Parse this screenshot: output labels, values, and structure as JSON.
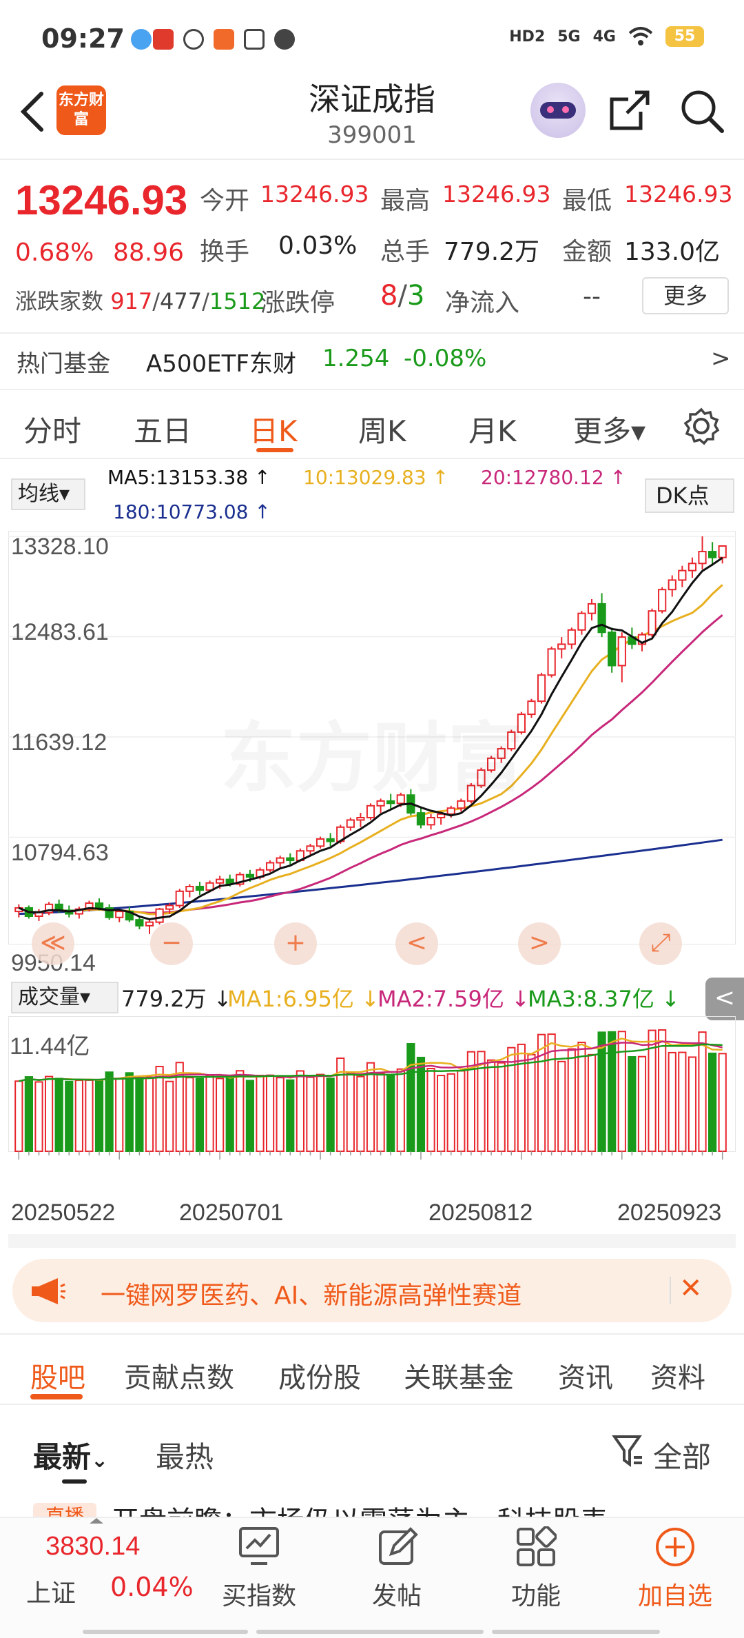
{
  "status_bar": {
    "time": "09:27",
    "network_labels": [
      "HD2",
      "5G",
      "4G"
    ],
    "battery": "55"
  },
  "header": {
    "logo_text": "东方财富",
    "title": "深证成指",
    "code": "399001"
  },
  "quote": {
    "price": "13246.93",
    "change_pct": "0.68%",
    "change": "88.96",
    "open_label": "今开",
    "open": "13246.93",
    "high_label": "最高",
    "high": "13246.93",
    "low_label": "最低",
    "low": "13246.93",
    "turnover_label": "换手",
    "turnover": "0.03%",
    "volume_label": "总手",
    "volume": "779.2万",
    "amount_label": "金额",
    "amount": "133.0亿",
    "breadth_label": "涨跌家数",
    "breadth_up": "917",
    "breadth_flat": "477",
    "breadth_down": "1512",
    "sep": "/",
    "limit_label": "涨跌停",
    "limit_up": "8",
    "limit_down": "3",
    "netflow_label": "净流入",
    "netflow": "--",
    "more_label": "更多"
  },
  "hot_fund": {
    "label": "热门基金",
    "name": "A500ETF东财",
    "price": "1.254",
    "change": "-0.08%",
    "arrow": ">"
  },
  "period_tabs": [
    "分时",
    "五日",
    "日K",
    "周K",
    "月K",
    "更多▾"
  ],
  "active_period": "日K",
  "indicators": {
    "ma_button": "均线▾",
    "ma5": "MA5:13153.38 ↑",
    "ma10": "10:13029.83 ↑",
    "ma20": "20:12780.12 ↑",
    "ma180": "180:10773.08 ↑",
    "dk_button": "DK点"
  },
  "price_axis": [
    "13328.10",
    "12483.61",
    "11639.12",
    "10794.63",
    "9950.14"
  ],
  "chart_controls": [
    "≪",
    "−",
    "+",
    "<",
    ">",
    "⤢"
  ],
  "volume_panel": {
    "button": "成交量▾",
    "current": "779.2万 ↓",
    "ma1": "MA1:6.95亿 ↓",
    "ma2": "MA2:7.59亿 ↓",
    "ma3": "MA3:8.37亿 ↓",
    "axis_max": "11.44亿",
    "collapse": "<"
  },
  "dates": [
    "20250522",
    "20250701",
    "20250812",
    "20250923"
  ],
  "watermark": "东方财富",
  "colors": {
    "up": "#e8262c",
    "down": "#1a9a1a",
    "accent": "#ef5a1a",
    "ma5": "#111111",
    "ma10": "#e8b020",
    "ma20": "#c8287a",
    "ma180": "#1a2f8f"
  },
  "banner": {
    "text": "一键网罗医药、AI、新能源高弹性赛道",
    "close": "✕"
  },
  "section_tabs": [
    "股吧",
    "贡献点数",
    "成份股",
    "关联基金",
    "资讯",
    "资料"
  ],
  "active_section": "股吧",
  "sort_tabs": [
    "最新",
    "最热"
  ],
  "sort_chevron": "⌄",
  "filter_label": "全部",
  "preview_post": {
    "tag": "直播",
    "text": "开盘前瞻：市场仍以震荡为主，科技股表…"
  },
  "bottom_bar": {
    "index_value": "3830.14",
    "index_name": "上证",
    "index_change": "0.04%",
    "items": [
      "买指数",
      "发帖",
      "功能",
      "加自选"
    ]
  },
  "chart_data": {
    "type": "candlestick",
    "title": "",
    "x_range": [
      "20250522",
      "20250924"
    ],
    "y_range": [
      9950.14,
      13328.1
    ],
    "ohlc": [
      [
        10170,
        10230,
        10120,
        10200
      ],
      [
        10200,
        10220,
        10110,
        10130
      ],
      [
        10130,
        10190,
        10090,
        10160
      ],
      [
        10160,
        10250,
        10140,
        10230
      ],
      [
        10230,
        10270,
        10160,
        10180
      ],
      [
        10180,
        10220,
        10120,
        10150
      ],
      [
        10150,
        10210,
        10110,
        10190
      ],
      [
        10190,
        10260,
        10170,
        10240
      ],
      [
        10240,
        10280,
        10180,
        10200
      ],
      [
        10200,
        10230,
        10100,
        10120
      ],
      [
        10120,
        10180,
        10080,
        10170
      ],
      [
        10170,
        10210,
        10080,
        10100
      ],
      [
        10100,
        10130,
        10020,
        10050
      ],
      [
        10050,
        10110,
        9980,
        10080
      ],
      [
        10080,
        10200,
        10060,
        10190
      ],
      [
        10190,
        10240,
        10150,
        10220
      ],
      [
        10220,
        10360,
        10200,
        10340
      ],
      [
        10340,
        10400,
        10290,
        10380
      ],
      [
        10380,
        10420,
        10310,
        10350
      ],
      [
        10350,
        10430,
        10330,
        10410
      ],
      [
        10410,
        10470,
        10360,
        10440
      ],
      [
        10440,
        10480,
        10380,
        10400
      ],
      [
        10400,
        10500,
        10380,
        10480
      ],
      [
        10480,
        10520,
        10420,
        10460
      ],
      [
        10460,
        10540,
        10440,
        10520
      ],
      [
        10520,
        10600,
        10500,
        10580
      ],
      [
        10580,
        10640,
        10540,
        10620
      ],
      [
        10620,
        10660,
        10560,
        10600
      ],
      [
        10600,
        10700,
        10590,
        10680
      ],
      [
        10680,
        10740,
        10640,
        10720
      ],
      [
        10720,
        10800,
        10700,
        10780
      ],
      [
        10780,
        10830,
        10720,
        10760
      ],
      [
        10760,
        10900,
        10740,
        10880
      ],
      [
        10880,
        10960,
        10850,
        10940
      ],
      [
        10940,
        11000,
        10880,
        10960
      ],
      [
        10960,
        11080,
        10940,
        11060
      ],
      [
        11060,
        11120,
        11000,
        11100
      ],
      [
        11100,
        11160,
        11030,
        11080
      ],
      [
        11080,
        11170,
        11050,
        11150
      ],
      [
        11150,
        11200,
        10980,
        11000
      ],
      [
        11000,
        11040,
        10870,
        10900
      ],
      [
        10900,
        10990,
        10860,
        10960
      ],
      [
        10960,
        11010,
        10900,
        10990
      ],
      [
        10990,
        11060,
        10960,
        11040
      ],
      [
        11040,
        11120,
        11010,
        11100
      ],
      [
        11100,
        11250,
        11080,
        11230
      ],
      [
        11230,
        11380,
        11210,
        11360
      ],
      [
        11360,
        11480,
        11340,
        11460
      ],
      [
        11460,
        11560,
        11420,
        11540
      ],
      [
        11540,
        11700,
        11520,
        11680
      ],
      [
        11680,
        11850,
        11660,
        11830
      ],
      [
        11830,
        11960,
        11800,
        11940
      ],
      [
        11940,
        12180,
        11920,
        12160
      ],
      [
        12160,
        12400,
        12140,
        12380
      ],
      [
        12380,
        12480,
        12300,
        12420
      ],
      [
        12420,
        12560,
        12380,
        12540
      ],
      [
        12540,
        12700,
        12500,
        12680
      ],
      [
        12680,
        12800,
        12620,
        12760
      ],
      [
        12760,
        12850,
        12480,
        12520
      ],
      [
        12520,
        12560,
        12180,
        12240
      ],
      [
        12240,
        12520,
        12100,
        12480
      ],
      [
        12480,
        12560,
        12380,
        12420
      ],
      [
        12420,
        12520,
        12360,
        12500
      ],
      [
        12500,
        12720,
        12480,
        12700
      ],
      [
        12700,
        12900,
        12680,
        12880
      ],
      [
        12880,
        13000,
        12820,
        12960
      ],
      [
        12960,
        13080,
        12900,
        13040
      ],
      [
        13040,
        13150,
        12980,
        13100
      ],
      [
        13100,
        13328,
        13050,
        13200
      ],
      [
        13200,
        13280,
        13080,
        13150
      ],
      [
        13150,
        13250,
        13100,
        13246.93
      ]
    ],
    "ma_period": [
      5,
      10,
      20,
      180
    ],
    "volume_axis_max": "11.44亿"
  }
}
